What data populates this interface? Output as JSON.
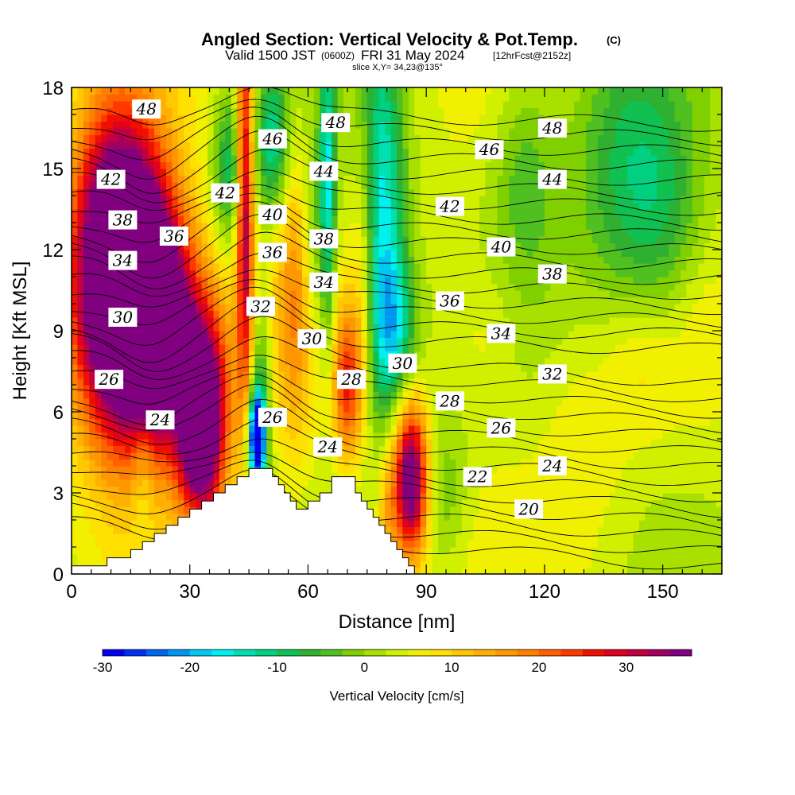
{
  "chart_data": {
    "type": "heatmap",
    "title": "Angled Section: Vertical Velocity & Pot.Temp.",
    "title_mark": "(C)",
    "subtitle_parts": [
      "Valid 1500 JST",
      "(0600Z)",
      "FRI 31 May 2024",
      "[12hrFcst@2152z]"
    ],
    "subtitle2": "slice X,Y= 34,23@135°",
    "xlabel": "Distance [nm]",
    "ylabel": "Height [Kft MSL]",
    "xlim": [
      0,
      165
    ],
    "ylim": [
      0,
      18
    ],
    "xticks": [
      0,
      30,
      60,
      90,
      120,
      150
    ],
    "yticks": [
      0,
      3,
      6,
      9,
      12,
      15,
      18
    ],
    "colorbar": {
      "label": "Vertical Velocity [cm/s]",
      "min": -30,
      "max": 35,
      "step": 2.5,
      "ticks": [
        -30,
        -20,
        -10,
        0,
        10,
        20,
        30
      ],
      "colors": [
        "#0000f0",
        "#0030f0",
        "#0064f0",
        "#0096f0",
        "#00c8f0",
        "#00f0f0",
        "#00e0b0",
        "#00d080",
        "#10c050",
        "#30b030",
        "#50c020",
        "#80d000",
        "#a8e000",
        "#d0f000",
        "#f0f000",
        "#ffe000",
        "#ffc800",
        "#ffb000",
        "#ff9800",
        "#ff8000",
        "#ff6000",
        "#ff3800",
        "#f01000",
        "#e00020",
        "#c00040",
        "#a00060",
        "#800080"
      ]
    },
    "terrain": [
      [
        0,
        0.3
      ],
      [
        9,
        0.3
      ],
      [
        9,
        0.6
      ],
      [
        15,
        0.6
      ],
      [
        15,
        0.9
      ],
      [
        18,
        0.9
      ],
      [
        18,
        1.2
      ],
      [
        21,
        1.2
      ],
      [
        21,
        1.5
      ],
      [
        24,
        1.5
      ],
      [
        24,
        1.8
      ],
      [
        27,
        1.8
      ],
      [
        27,
        2.1
      ],
      [
        30,
        2.1
      ],
      [
        30,
        2.4
      ],
      [
        33,
        2.4
      ],
      [
        33,
        2.7
      ],
      [
        36,
        2.7
      ],
      [
        36,
        3.0
      ],
      [
        39,
        3.0
      ],
      [
        39,
        3.3
      ],
      [
        42,
        3.3
      ],
      [
        42,
        3.6
      ],
      [
        45,
        3.6
      ],
      [
        45,
        3.9
      ],
      [
        51,
        3.9
      ],
      [
        51,
        3.6
      ],
      [
        52.5,
        3.6
      ],
      [
        52.5,
        3.3
      ],
      [
        54,
        3.3
      ],
      [
        54,
        3.0
      ],
      [
        55.5,
        3.0
      ],
      [
        55.5,
        2.7
      ],
      [
        57,
        2.7
      ],
      [
        57,
        2.4
      ],
      [
        60,
        2.4
      ],
      [
        60,
        2.7
      ],
      [
        63,
        2.7
      ],
      [
        63,
        3.0
      ],
      [
        66,
        3.0
      ],
      [
        66,
        3.6
      ],
      [
        72,
        3.6
      ],
      [
        72,
        3.0
      ],
      [
        73.5,
        3.0
      ],
      [
        73.5,
        2.7
      ],
      [
        75,
        2.7
      ],
      [
        75,
        2.4
      ],
      [
        76.5,
        2.4
      ],
      [
        76.5,
        2.1
      ],
      [
        78,
        2.1
      ],
      [
        78,
        1.8
      ],
      [
        79.5,
        1.8
      ],
      [
        79.5,
        1.5
      ],
      [
        81,
        1.5
      ],
      [
        81,
        1.2
      ],
      [
        82.5,
        1.2
      ],
      [
        82.5,
        0.9
      ],
      [
        84,
        0.9
      ],
      [
        84,
        0.6
      ],
      [
        85.5,
        0.6
      ],
      [
        85.5,
        0.3
      ],
      [
        87,
        0.3
      ],
      [
        87,
        0
      ],
      [
        0,
        0
      ]
    ],
    "field_blobs": [
      {
        "x": 12,
        "y": 11,
        "w": 60,
        "sx": 8,
        "sy": 4
      },
      {
        "x": 22,
        "y": 9.5,
        "w": 30,
        "sx": 6,
        "sy": 3
      },
      {
        "x": 33,
        "y": 5.5,
        "w": 40,
        "sx": 4,
        "sy": 2.5
      },
      {
        "x": 30,
        "y": 8,
        "w": 15,
        "sx": 10,
        "sy": 3
      },
      {
        "x": 44,
        "y": 14,
        "w": 30,
        "sx": 1.5,
        "sy": 5
      },
      {
        "x": 40,
        "y": 15,
        "w": -14,
        "sx": 3,
        "sy": 2
      },
      {
        "x": 51,
        "y": 16,
        "w": -16,
        "sx": 3,
        "sy": 2
      },
      {
        "x": 47,
        "y": 5,
        "w": -40,
        "sx": 1.5,
        "sy": 1.2
      },
      {
        "x": 48,
        "y": 7,
        "w": -12,
        "sx": 2,
        "sy": 2.5
      },
      {
        "x": 57,
        "y": 10,
        "w": 12,
        "sx": 4,
        "sy": 4
      },
      {
        "x": 61,
        "y": 12,
        "w": -10,
        "sx": 2,
        "sy": 3
      },
      {
        "x": 65,
        "y": 14,
        "w": -20,
        "sx": 1.5,
        "sy": 4
      },
      {
        "x": 70,
        "y": 7,
        "w": 20,
        "sx": 2.5,
        "sy": 2
      },
      {
        "x": 74,
        "y": 11,
        "w": 8,
        "sx": 2,
        "sy": 4
      },
      {
        "x": 79,
        "y": 13,
        "w": -20,
        "sx": 4,
        "sy": 5
      },
      {
        "x": 82,
        "y": 9,
        "w": -14,
        "sx": 4,
        "sy": 2
      },
      {
        "x": 86,
        "y": 3.5,
        "w": 38,
        "sx": 3,
        "sy": 2
      },
      {
        "x": 80,
        "y": 2,
        "w": 10,
        "sx": 2,
        "sy": 2
      },
      {
        "x": 95,
        "y": 3,
        "w": -6,
        "sx": 4,
        "sy": 2
      },
      {
        "x": 115,
        "y": 15,
        "w": -8,
        "sx": 6,
        "sy": 3
      },
      {
        "x": 140,
        "y": 15,
        "w": -10,
        "sx": 10,
        "sy": 4
      },
      {
        "x": 150,
        "y": 13,
        "w": -8,
        "sx": 8,
        "sy": 3
      },
      {
        "x": 105,
        "y": 9,
        "w": 4,
        "sx": 6,
        "sy": 2
      },
      {
        "x": 145,
        "y": 8,
        "w": 4,
        "sx": 6,
        "sy": 2
      },
      {
        "x": 130,
        "y": 5,
        "w": 3,
        "sx": 8,
        "sy": 3
      },
      {
        "x": 18,
        "y": 4,
        "w": -6,
        "sx": 2,
        "sy": 2
      },
      {
        "x": 160,
        "y": 9,
        "w": 2,
        "sx": 4,
        "sy": 2
      }
    ],
    "contour_levels": [
      20,
      21,
      22,
      23,
      24,
      25,
      26,
      27,
      28,
      29,
      30,
      31,
      32,
      33,
      34,
      35,
      36,
      37,
      38,
      39,
      40,
      41,
      42,
      43,
      44,
      45,
      46,
      47,
      48,
      49,
      50
    ],
    "contour_labels": [
      {
        "text": "48",
        "x": 19,
        "y": 17.2
      },
      {
        "text": "42",
        "x": 10,
        "y": 14.6
      },
      {
        "text": "38",
        "x": 13,
        "y": 13.1
      },
      {
        "text": "36",
        "x": 26,
        "y": 12.5
      },
      {
        "text": "34",
        "x": 13,
        "y": 11.6
      },
      {
        "text": "30",
        "x": 13,
        "y": 9.5
      },
      {
        "text": "26",
        "x": 9.5,
        "y": 7.2
      },
      {
        "text": "24",
        "x": 22.5,
        "y": 5.7
      },
      {
        "text": "42",
        "x": 39,
        "y": 14.1
      },
      {
        "text": "46",
        "x": 51,
        "y": 16.1
      },
      {
        "text": "40",
        "x": 51,
        "y": 13.3
      },
      {
        "text": "36",
        "x": 51,
        "y": 11.9
      },
      {
        "text": "32",
        "x": 48,
        "y": 9.9
      },
      {
        "text": "26",
        "x": 51,
        "y": 5.8
      },
      {
        "text": "48",
        "x": 67,
        "y": 16.7
      },
      {
        "text": "44",
        "x": 64,
        "y": 14.9
      },
      {
        "text": "38",
        "x": 64,
        "y": 12.4
      },
      {
        "text": "34",
        "x": 64,
        "y": 10.8
      },
      {
        "text": "30",
        "x": 61,
        "y": 8.7
      },
      {
        "text": "28",
        "x": 71,
        "y": 7.2
      },
      {
        "text": "24",
        "x": 65,
        "y": 4.7
      },
      {
        "text": "30",
        "x": 84,
        "y": 7.8
      },
      {
        "text": "42",
        "x": 96,
        "y": 13.6
      },
      {
        "text": "36",
        "x": 96,
        "y": 10.1
      },
      {
        "text": "28",
        "x": 96,
        "y": 6.4
      },
      {
        "text": "22",
        "x": 103,
        "y": 3.6
      },
      {
        "text": "46",
        "x": 106,
        "y": 15.7
      },
      {
        "text": "40",
        "x": 109,
        "y": 12.1
      },
      {
        "text": "34",
        "x": 109,
        "y": 8.9
      },
      {
        "text": "26",
        "x": 109,
        "y": 5.4
      },
      {
        "text": "20",
        "x": 116,
        "y": 2.4
      },
      {
        "text": "48",
        "x": 122,
        "y": 16.5
      },
      {
        "text": "44",
        "x": 122,
        "y": 14.6
      },
      {
        "text": "38",
        "x": 122,
        "y": 11.1
      },
      {
        "text": "32",
        "x": 122,
        "y": 7.4
      },
      {
        "text": "24",
        "x": 122,
        "y": 4.0
      }
    ]
  }
}
